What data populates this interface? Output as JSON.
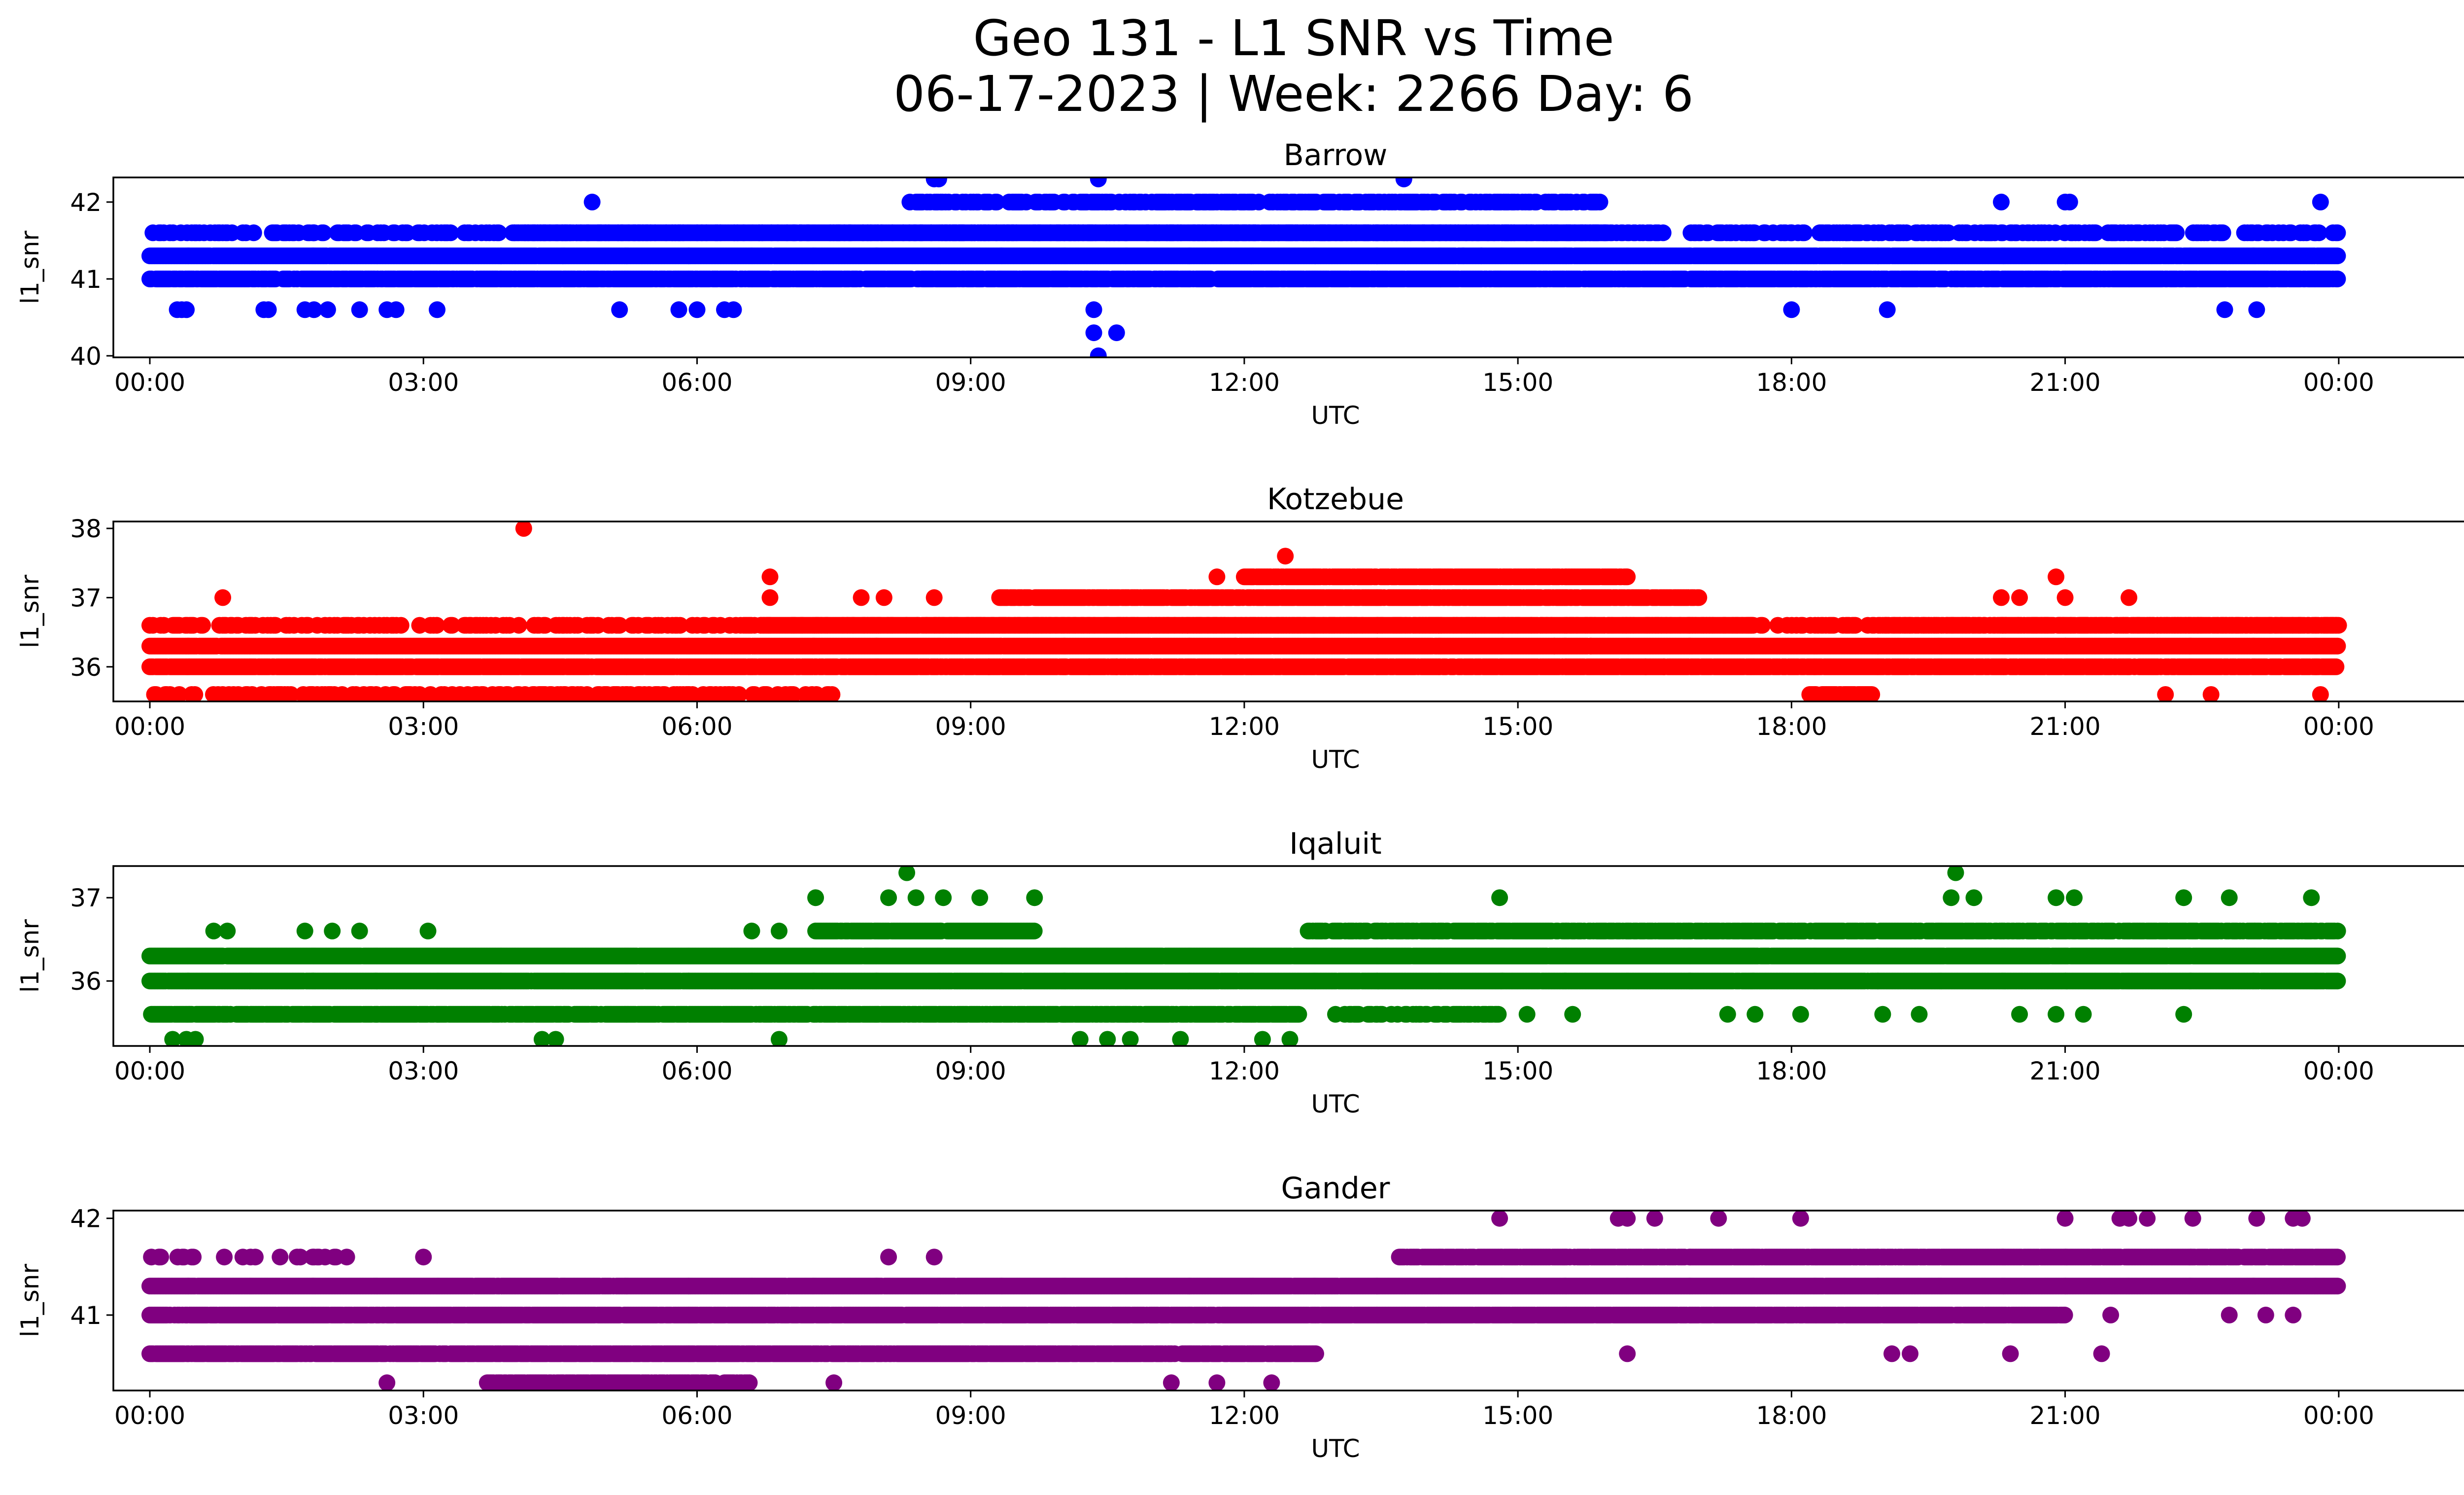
{
  "title_line1": "Geo 131 - L1 SNR vs Time",
  "title_line2": "06-17-2023 | Week: 2266 Day: 6",
  "chart_data": [
    {
      "type": "scatter",
      "title": "Barrow",
      "xlabel": "UTC",
      "ylabel": "l1_snr",
      "color": "#0000ff",
      "x_unit": "hours UTC",
      "xlim": [
        -0.4,
        26.4
      ],
      "ylim": [
        39.98,
        42.32
      ],
      "xticks": [
        "00:00",
        "03:00",
        "06:00",
        "09:00",
        "12:00",
        "15:00",
        "18:00",
        "21:00",
        "00:00"
      ],
      "yticks": [
        "40",
        "41",
        "42"
      ],
      "grid": false,
      "bands": [
        {
          "y": 41.6,
          "from": 0.0,
          "to": 24.0,
          "density": 0.38
        },
        {
          "y": 41.3,
          "from": 0.0,
          "to": 24.0,
          "density": 0.99
        },
        {
          "y": 41.0,
          "from": 0.0,
          "to": 24.0,
          "density": 0.86
        },
        {
          "y": 41.6,
          "from": 4.0,
          "to": 16.0,
          "density": 0.98
        },
        {
          "y": 42.0,
          "from": 8.3,
          "to": 15.9,
          "density": 0.52
        }
      ],
      "points": [
        [
          0.3,
          40.6
        ],
        [
          0.35,
          40.6
        ],
        [
          0.4,
          40.6
        ],
        [
          1.25,
          40.6
        ],
        [
          1.3,
          40.6
        ],
        [
          1.7,
          40.6
        ],
        [
          1.8,
          40.6
        ],
        [
          1.95,
          40.6
        ],
        [
          2.3,
          40.6
        ],
        [
          2.6,
          40.6
        ],
        [
          2.7,
          40.6
        ],
        [
          3.15,
          40.6
        ],
        [
          5.15,
          40.6
        ],
        [
          5.8,
          40.6
        ],
        [
          6.0,
          40.6
        ],
        [
          6.3,
          40.6
        ],
        [
          6.4,
          40.6
        ],
        [
          10.35,
          40.6
        ],
        [
          10.35,
          40.3
        ],
        [
          10.4,
          40.0
        ],
        [
          10.6,
          40.3
        ],
        [
          18.0,
          40.6
        ],
        [
          19.05,
          40.6
        ],
        [
          22.75,
          40.6
        ],
        [
          23.1,
          40.6
        ],
        [
          4.85,
          42.0
        ],
        [
          8.6,
          42.3
        ],
        [
          8.65,
          42.3
        ],
        [
          10.4,
          42.3
        ],
        [
          13.75,
          42.3
        ],
        [
          20.3,
          42.0
        ],
        [
          21.0,
          42.0
        ],
        [
          21.05,
          42.0
        ],
        [
          23.8,
          42.0
        ],
        [
          9.0,
          42.0
        ],
        [
          9.75,
          42.0
        ],
        [
          12.3,
          41.0
        ],
        [
          14.4,
          41.3
        ],
        [
          14.6,
          41.3
        ],
        [
          16.6,
          41.0
        ],
        [
          17.0,
          41.6
        ],
        [
          17.5,
          41.6
        ],
        [
          17.7,
          41.6
        ],
        [
          18.0,
          41.6
        ],
        [
          18.6,
          41.6
        ],
        [
          19.1,
          41.6
        ],
        [
          1.8,
          41.6
        ],
        [
          20.6,
          41.0
        ],
        [
          21.2,
          41.0
        ],
        [
          21.3,
          41.6
        ],
        [
          23.0,
          41.6
        ]
      ]
    },
    {
      "type": "scatter",
      "title": "Kotzebue",
      "xlabel": "UTC",
      "ylabel": "l1_snr",
      "color": "#ff0000",
      "x_unit": "hours UTC",
      "xlim": [
        -0.4,
        26.4
      ],
      "ylim": [
        35.5,
        38.1
      ],
      "xticks": [
        "00:00",
        "03:00",
        "06:00",
        "09:00",
        "12:00",
        "15:00",
        "18:00",
        "21:00",
        "00:00"
      ],
      "yticks": [
        "36",
        "37",
        "38"
      ],
      "grid": false,
      "bands": [
        {
          "y": 36.6,
          "from": 0.0,
          "to": 24.0,
          "density": 0.35
        },
        {
          "y": 36.3,
          "from": 0.0,
          "to": 24.0,
          "density": 0.99
        },
        {
          "y": 36.0,
          "from": 0.0,
          "to": 24.0,
          "density": 0.9
        },
        {
          "y": 36.6,
          "from": 6.7,
          "to": 17.6,
          "density": 0.99
        },
        {
          "y": 36.6,
          "from": 19.0,
          "to": 24.0,
          "density": 0.8
        },
        {
          "y": 37.0,
          "from": 9.3,
          "to": 17.0,
          "density": 0.85
        },
        {
          "y": 37.3,
          "from": 12.0,
          "to": 16.2,
          "density": 0.92
        },
        {
          "y": 35.6,
          "from": 0.0,
          "to": 7.5,
          "density": 0.3
        },
        {
          "y": 35.6,
          "from": 18.2,
          "to": 18.9,
          "density": 0.9
        }
      ],
      "points": [
        [
          4.1,
          38.0
        ],
        [
          12.45,
          37.6
        ],
        [
          0.8,
          37.0
        ],
        [
          6.8,
          37.3
        ],
        [
          6.8,
          37.0
        ],
        [
          7.8,
          37.0
        ],
        [
          8.05,
          37.0
        ],
        [
          8.6,
          37.0
        ],
        [
          11.7,
          37.3
        ],
        [
          20.3,
          37.0
        ],
        [
          20.5,
          37.0
        ],
        [
          20.9,
          37.3
        ],
        [
          21.0,
          37.0
        ],
        [
          21.7,
          37.0
        ],
        [
          22.1,
          35.6
        ],
        [
          22.6,
          35.6
        ],
        [
          23.8,
          35.6
        ],
        [
          9.2,
          36.0
        ],
        [
          10.3,
          36.0
        ],
        [
          10.6,
          36.0
        ],
        [
          11.9,
          36.3
        ],
        [
          15.4,
          36.3
        ],
        [
          15.8,
          36.3
        ],
        [
          16.4,
          36.0
        ],
        [
          16.6,
          36.0
        ]
      ]
    },
    {
      "type": "scatter",
      "title": "Iqaluit",
      "xlabel": "UTC",
      "ylabel": "l1_snr",
      "color": "#008000",
      "x_unit": "hours UTC",
      "xlim": [
        -0.4,
        26.4
      ],
      "ylim": [
        35.22,
        37.38
      ],
      "xticks": [
        "00:00",
        "03:00",
        "06:00",
        "09:00",
        "12:00",
        "15:00",
        "18:00",
        "21:00",
        "00:00"
      ],
      "yticks": [
        "36",
        "37"
      ],
      "grid": false,
      "bands": [
        {
          "y": 36.3,
          "from": 0.0,
          "to": 24.0,
          "density": 0.99
        },
        {
          "y": 36.0,
          "from": 0.0,
          "to": 24.0,
          "density": 0.99
        },
        {
          "y": 35.6,
          "from": 0.0,
          "to": 12.6,
          "density": 0.85
        },
        {
          "y": 36.6,
          "from": 7.3,
          "to": 9.7,
          "density": 0.9
        },
        {
          "y": 36.6,
          "from": 12.7,
          "to": 24.0,
          "density": 0.75
        },
        {
          "y": 35.6,
          "from": 13.0,
          "to": 14.8,
          "density": 0.55
        }
      ],
      "points": [
        [
          0.25,
          35.3
        ],
        [
          0.4,
          35.3
        ],
        [
          0.5,
          35.3
        ],
        [
          4.3,
          35.3
        ],
        [
          4.45,
          35.3
        ],
        [
          6.9,
          35.3
        ],
        [
          10.2,
          35.3
        ],
        [
          10.5,
          35.3
        ],
        [
          10.75,
          35.3
        ],
        [
          11.3,
          35.3
        ],
        [
          12.2,
          35.3
        ],
        [
          12.5,
          35.3
        ],
        [
          0.7,
          36.6
        ],
        [
          0.85,
          36.6
        ],
        [
          1.7,
          36.6
        ],
        [
          2.0,
          36.6
        ],
        [
          2.3,
          36.6
        ],
        [
          3.05,
          36.6
        ],
        [
          6.6,
          36.6
        ],
        [
          6.9,
          36.6
        ],
        [
          7.3,
          37.0
        ],
        [
          8.3,
          37.3
        ],
        [
          8.1,
          37.0
        ],
        [
          8.4,
          37.0
        ],
        [
          8.7,
          37.0
        ],
        [
          9.1,
          37.0
        ],
        [
          9.7,
          37.0
        ],
        [
          14.8,
          37.0
        ],
        [
          19.8,
          37.3
        ],
        [
          19.75,
          37.0
        ],
        [
          20.0,
          37.0
        ],
        [
          20.9,
          37.0
        ],
        [
          21.1,
          37.0
        ],
        [
          22.3,
          37.0
        ],
        [
          22.8,
          37.0
        ],
        [
          23.7,
          37.0
        ],
        [
          15.1,
          35.6
        ],
        [
          15.6,
          35.6
        ],
        [
          17.3,
          35.6
        ],
        [
          17.6,
          35.6
        ],
        [
          18.1,
          35.6
        ],
        [
          19.0,
          35.6
        ],
        [
          19.4,
          35.6
        ],
        [
          20.5,
          35.6
        ],
        [
          20.9,
          35.6
        ],
        [
          21.2,
          35.6
        ],
        [
          22.3,
          35.6
        ]
      ]
    },
    {
      "type": "scatter",
      "title": "Gander",
      "xlabel": "UTC",
      "ylabel": "l1_snr",
      "color": "#800080",
      "x_unit": "hours UTC",
      "xlim": [
        -0.4,
        26.4
      ],
      "ylim": [
        40.22,
        42.08
      ],
      "xticks": [
        "00:00",
        "03:00",
        "06:00",
        "09:00",
        "12:00",
        "15:00",
        "18:00",
        "21:00",
        "00:00"
      ],
      "yticks": [
        "41",
        "42"
      ],
      "grid": false,
      "bands": [
        {
          "y": 41.3,
          "from": 0.0,
          "to": 24.0,
          "density": 0.99
        },
        {
          "y": 41.0,
          "from": 0.0,
          "to": 21.0,
          "density": 0.93
        },
        {
          "y": 40.6,
          "from": 0.0,
          "to": 12.8,
          "density": 0.9
        },
        {
          "y": 40.3,
          "from": 3.7,
          "to": 6.6,
          "density": 0.8
        },
        {
          "y": 41.6,
          "from": 13.7,
          "to": 24.0,
          "density": 0.9
        },
        {
          "y": 41.6,
          "from": 0.0,
          "to": 2.2,
          "density": 0.25
        }
      ],
      "points": [
        [
          0.1,
          41.6
        ],
        [
          2.6,
          40.3
        ],
        [
          3.0,
          41.6
        ],
        [
          7.5,
          40.3
        ],
        [
          8.1,
          41.6
        ],
        [
          8.6,
          41.6
        ],
        [
          11.2,
          40.3
        ],
        [
          11.7,
          40.3
        ],
        [
          12.3,
          40.3
        ],
        [
          14.8,
          42.0
        ],
        [
          16.1,
          42.0
        ],
        [
          16.2,
          42.0
        ],
        [
          16.5,
          42.0
        ],
        [
          17.2,
          42.0
        ],
        [
          18.1,
          42.0
        ],
        [
          21.0,
          42.0
        ],
        [
          21.6,
          42.0
        ],
        [
          21.7,
          42.0
        ],
        [
          21.9,
          42.0
        ],
        [
          22.4,
          42.0
        ],
        [
          23.1,
          42.0
        ],
        [
          23.5,
          42.0
        ],
        [
          23.6,
          42.0
        ],
        [
          16.2,
          40.6
        ],
        [
          19.1,
          40.6
        ],
        [
          19.3,
          40.6
        ],
        [
          20.4,
          40.6
        ],
        [
          21.4,
          40.6
        ],
        [
          21.5,
          41.0
        ],
        [
          22.8,
          41.0
        ],
        [
          23.2,
          41.0
        ],
        [
          23.5,
          41.0
        ]
      ]
    }
  ]
}
